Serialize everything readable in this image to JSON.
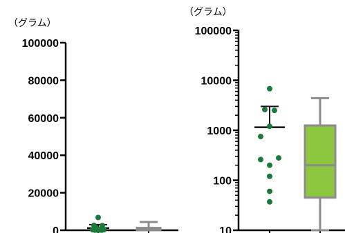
{
  "chart_data": [
    {
      "type": "scatter",
      "scale": "linear",
      "unit_label": "（グラム）",
      "ylim": [
        0,
        100000
      ],
      "yticks": [
        "100000",
        "80000",
        "60000",
        "40000",
        "20000",
        "0"
      ],
      "ytick_values": [
        100000,
        80000,
        60000,
        40000,
        20000,
        0
      ],
      "groups": [
        {
          "kind": "dots_mean_sem",
          "color": "#1b7a3a",
          "values": [
            6800,
            2600,
            2500,
            1200,
            750,
            280,
            260,
            200,
            120,
            60,
            37
          ],
          "mean": 1150,
          "sem_upper": 3000
        },
        {
          "kind": "box",
          "fill": "#8dc63f",
          "stroke": "#8c8c8c",
          "min": 10,
          "q1": 45,
          "median": 200,
          "q3": 1250,
          "max": 4400
        }
      ]
    },
    {
      "type": "scatter",
      "scale": "log",
      "unit_label": "（グラム）",
      "ylim": [
        10,
        100000
      ],
      "yticks": [
        "100000",
        "10000",
        "1000",
        "100",
        "10"
      ],
      "ytick_values": [
        100000,
        10000,
        1000,
        100,
        10
      ],
      "groups": [
        {
          "kind": "dots_mean_sem",
          "color": "#1b7a3a",
          "values": [
            6800,
            2600,
            2500,
            1200,
            750,
            280,
            260,
            200,
            120,
            60,
            37
          ],
          "mean": 1150,
          "sem_upper": 3000
        },
        {
          "kind": "box",
          "fill": "#8dc63f",
          "stroke": "#8c8c8c",
          "min": 10,
          "q1": 45,
          "median": 200,
          "q3": 1250,
          "max": 4400
        }
      ]
    }
  ]
}
